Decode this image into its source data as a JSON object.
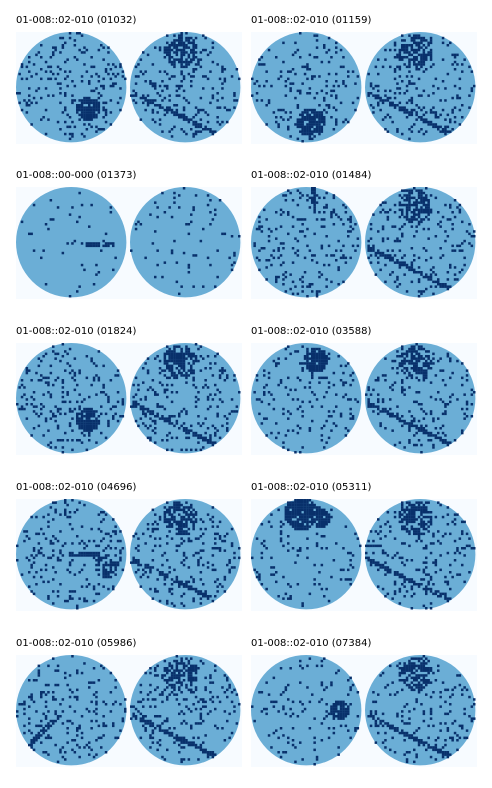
{
  "colors": {
    "background": "#f7fbff",
    "wafer": "#6baed6",
    "defect": "#08306b"
  },
  "panels": [
    {
      "title": "01-008::02-010 (01032)",
      "left_pattern": "blob-bottom-right",
      "right_pattern": "top-cluster-scratch"
    },
    {
      "title": "01-008::02-010 (01159)",
      "left_pattern": "blob-bottom",
      "right_pattern": "top-cluster-scratch"
    },
    {
      "title": "01-008::00-000 (01373)",
      "left_pattern": "sparse-line",
      "right_pattern": "sparse"
    },
    {
      "title": "01-008::02-010 (01484)",
      "left_pattern": "top-notch",
      "right_pattern": "top-cluster-scratch"
    },
    {
      "title": "01-008::02-010 (01824)",
      "left_pattern": "blob-bottom-right",
      "right_pattern": "top-cluster-scratch"
    },
    {
      "title": "01-008::02-010 (03588)",
      "left_pattern": "blob-top",
      "right_pattern": "top-cluster-scratch"
    },
    {
      "title": "01-008::02-010 (04696)",
      "left_pattern": "right-cluster",
      "right_pattern": "top-cluster-scratch"
    },
    {
      "title": "01-008::02-010 (05311)",
      "left_pattern": "blob-top-large",
      "right_pattern": "top-cluster-scratch"
    },
    {
      "title": "01-008::02-010 (05986)",
      "left_pattern": "scratch-bottom-left",
      "right_pattern": "top-cluster-scratch"
    },
    {
      "title": "01-008::02-010 (07384)",
      "left_pattern": "blob-right",
      "right_pattern": "top-cluster-scratch"
    }
  ]
}
